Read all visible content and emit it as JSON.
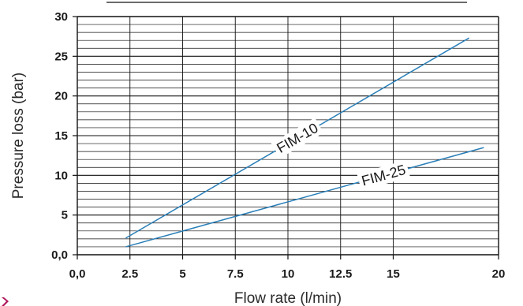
{
  "chart_data": {
    "type": "line",
    "title": "",
    "xlabel": "Flow rate (l/min)",
    "ylabel": "Pressure loss (bar)",
    "xlim": [
      0,
      20
    ],
    "ylim": [
      0,
      30
    ],
    "x_ticks": [
      "0,0",
      "2.5",
      "5",
      "7.5",
      "10",
      "12.5",
      "15",
      "20"
    ],
    "y_ticks": [
      "0,0",
      "5",
      "10",
      "15",
      "20",
      "25",
      "30"
    ],
    "grid": true,
    "series": [
      {
        "name": "FIM-10",
        "x": [
          2.3,
          18.6
        ],
        "y": [
          2.1,
          27.3
        ],
        "color": "#2a7fb8"
      },
      {
        "name": "FIM-25",
        "x": [
          2.3,
          19.3
        ],
        "y": [
          1.0,
          13.5
        ],
        "color": "#2a7fb8"
      }
    ]
  },
  "colors": {
    "accent_mark": "#b0165a",
    "grid": "#111111",
    "line": "#2a7fb8"
  }
}
